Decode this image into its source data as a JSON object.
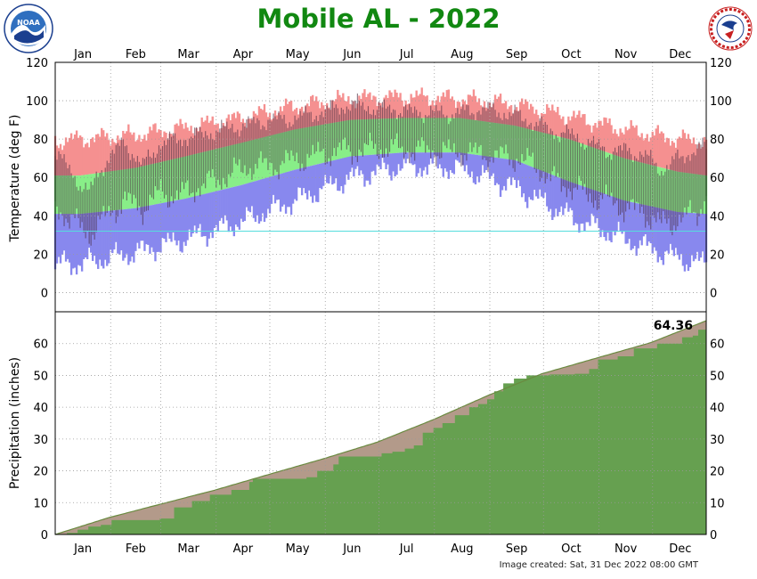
{
  "page": {
    "title": "Mobile AL - 2022",
    "footer": "Image created: Sat, 31 Dec 2022 08:00 GMT",
    "logos": [
      "noaa-logo",
      "nws-logo"
    ],
    "nws_logo_text": "NATIONAL WEATHER SERVICE",
    "noaa_logo_text": "NOAA"
  },
  "chart_data": [
    {
      "type": "bar",
      "ylabel": "Temperature (deg F)",
      "ylim": [
        -10,
        120
      ],
      "yticks": [
        0,
        20,
        40,
        60,
        80,
        100,
        120
      ],
      "grid": true,
      "months": [
        "Jan",
        "Feb",
        "Mar",
        "Apr",
        "May",
        "Jun",
        "Jul",
        "Aug",
        "Sep",
        "Oct",
        "Nov",
        "Dec"
      ],
      "reference_line": 32,
      "series": [
        {
          "key": "record_high",
          "color": "#f59090",
          "anchors": [
            [
              1,
              79
            ],
            [
              15,
              80
            ],
            [
              46,
              82
            ],
            [
              74,
              86
            ],
            [
              105,
              91
            ],
            [
              135,
              97
            ],
            [
              166,
              101
            ],
            [
              196,
              102
            ],
            [
              227,
              101
            ],
            [
              258,
              98
            ],
            [
              288,
              92
            ],
            [
              319,
              85
            ],
            [
              349,
              80
            ],
            [
              365,
              79
            ]
          ]
        },
        {
          "key": "normal_high",
          "color": "#88ee88",
          "anchors": [
            [
              1,
              61
            ],
            [
              15,
              61
            ],
            [
              46,
              65
            ],
            [
              74,
              71
            ],
            [
              105,
              78
            ],
            [
              135,
              85
            ],
            [
              166,
              90
            ],
            [
              196,
              91
            ],
            [
              227,
              91
            ],
            [
              258,
              87
            ],
            [
              288,
              80
            ],
            [
              319,
              70
            ],
            [
              349,
              63
            ],
            [
              365,
              61
            ]
          ]
        },
        {
          "key": "normal_low",
          "color": "#8888ee",
          "anchors": [
            [
              1,
              41
            ],
            [
              15,
              41
            ],
            [
              46,
              44
            ],
            [
              74,
              49
            ],
            [
              105,
              56
            ],
            [
              135,
              64
            ],
            [
              166,
              71
            ],
            [
              196,
              73
            ],
            [
              227,
              73
            ],
            [
              258,
              69
            ],
            [
              288,
              58
            ],
            [
              319,
              48
            ],
            [
              349,
              42
            ],
            [
              365,
              41
            ]
          ]
        },
        {
          "key": "record_low",
          "color": "#8888ee",
          "anchors": [
            [
              1,
              15
            ],
            [
              15,
              15
            ],
            [
              46,
              21
            ],
            [
              74,
              28
            ],
            [
              105,
              37
            ],
            [
              135,
              48
            ],
            [
              166,
              60
            ],
            [
              196,
              66
            ],
            [
              227,
              65
            ],
            [
              258,
              55
            ],
            [
              288,
              40
            ],
            [
              319,
              28
            ],
            [
              349,
              18
            ],
            [
              365,
              15
            ]
          ]
        },
        {
          "key": "observed",
          "color": "#4a2d42",
          "anchors": [
            [
              1,
              45,
              74
            ],
            [
              10,
              38,
              62
            ],
            [
              20,
              30,
              52
            ],
            [
              30,
              40,
              70
            ],
            [
              40,
              48,
              78
            ],
            [
              50,
              44,
              66
            ],
            [
              60,
              52,
              78
            ],
            [
              70,
              50,
              80
            ],
            [
              80,
              55,
              82
            ],
            [
              90,
              58,
              84
            ],
            [
              100,
              62,
              86
            ],
            [
              110,
              66,
              88
            ],
            [
              120,
              66,
              90
            ],
            [
              130,
              68,
              90
            ],
            [
              140,
              70,
              92
            ],
            [
              150,
              72,
              94
            ],
            [
              160,
              74,
              97
            ],
            [
              170,
              74,
              98
            ],
            [
              180,
              75,
              96
            ],
            [
              190,
              75,
              96
            ],
            [
              200,
              74,
              94
            ],
            [
              210,
              74,
              94
            ],
            [
              220,
              73,
              93
            ],
            [
              230,
              73,
              94
            ],
            [
              240,
              72,
              96
            ],
            [
              250,
              71,
              94
            ],
            [
              260,
              70,
              92
            ],
            [
              270,
              66,
              88
            ],
            [
              280,
              58,
              84
            ],
            [
              290,
              55,
              82
            ],
            [
              300,
              50,
              78
            ],
            [
              310,
              48,
              74
            ],
            [
              320,
              44,
              74
            ],
            [
              330,
              42,
              72
            ],
            [
              340,
              35,
              64
            ],
            [
              350,
              38,
              70
            ],
            [
              360,
              42,
              75
            ],
            [
              365,
              50,
              76
            ]
          ]
        }
      ]
    },
    {
      "type": "area",
      "ylabel": "Precipitation (inches)",
      "ylim": [
        0,
        70
      ],
      "yticks": [
        0,
        10,
        20,
        30,
        40,
        50,
        60
      ],
      "grid": true,
      "months": [
        "Jan",
        "Feb",
        "Mar",
        "Apr",
        "May",
        "Jun",
        "Jul",
        "Aug",
        "Sep",
        "Oct",
        "Nov",
        "Dec"
      ],
      "annotation": "64.36",
      "series": [
        {
          "key": "normal_accumulated",
          "color": "#b39a8a",
          "anchors": [
            [
              1,
              0
            ],
            [
              31,
              5.3
            ],
            [
              59,
              9.4
            ],
            [
              90,
              13.9
            ],
            [
              120,
              18.8
            ],
            [
              151,
              23.8
            ],
            [
              181,
              29.0
            ],
            [
              212,
              36.0
            ],
            [
              243,
              43.7
            ],
            [
              273,
              50.5
            ],
            [
              304,
              55.5
            ],
            [
              334,
              60.3
            ],
            [
              365,
              67.2
            ]
          ]
        },
        {
          "key": "observed_accumulated",
          "color": "#66a050",
          "steps": [
            [
              1,
              0
            ],
            [
              8,
              0.5
            ],
            [
              14,
              1.5
            ],
            [
              20,
              2.5
            ],
            [
              27,
              3.0
            ],
            [
              33,
              4.5
            ],
            [
              60,
              5.0
            ],
            [
              68,
              8.5
            ],
            [
              78,
              10.5
            ],
            [
              88,
              12.5
            ],
            [
              100,
              14.0
            ],
            [
              110,
              16.5
            ],
            [
              112,
              17.5
            ],
            [
              142,
              18.0
            ],
            [
              148,
              20.0
            ],
            [
              157,
              22.0
            ],
            [
              160,
              24.5
            ],
            [
              184,
              25.5
            ],
            [
              190,
              26.0
            ],
            [
              197,
              27.0
            ],
            [
              202,
              28.0
            ],
            [
              207,
              32.0
            ],
            [
              213,
              33.5
            ],
            [
              218,
              35.0
            ],
            [
              225,
              37.5
            ],
            [
              233,
              40.0
            ],
            [
              238,
              41.0
            ],
            [
              243,
              42.5
            ],
            [
              247,
              45.0
            ],
            [
              252,
              47.5
            ],
            [
              258,
              49.0
            ],
            [
              265,
              50.0
            ],
            [
              278,
              50.3
            ],
            [
              292,
              50.5
            ],
            [
              300,
              52.0
            ],
            [
              305,
              55.0
            ],
            [
              316,
              56.0
            ],
            [
              325,
              58.5
            ],
            [
              338,
              60.0
            ],
            [
              352,
              62.0
            ],
            [
              358,
              62.5
            ],
            [
              361,
              64.36
            ]
          ]
        }
      ]
    }
  ]
}
